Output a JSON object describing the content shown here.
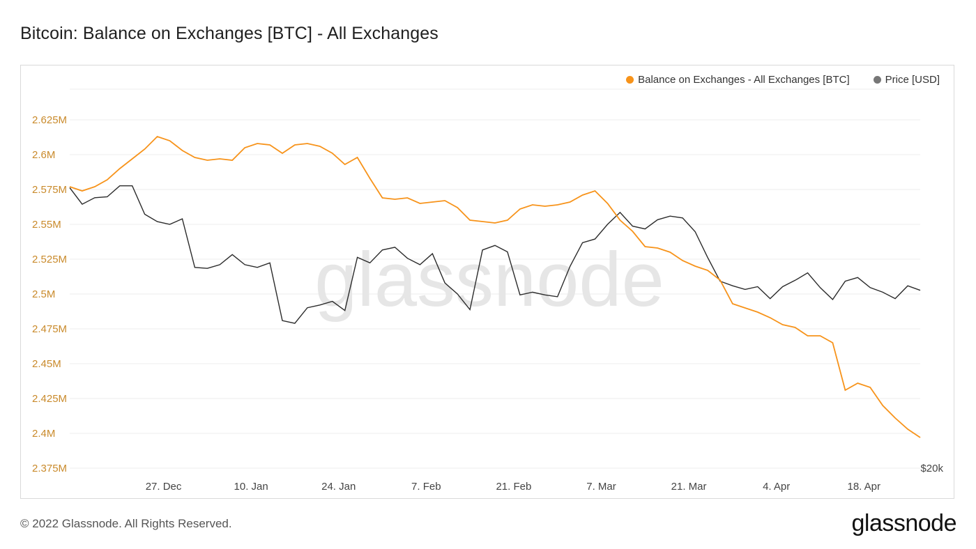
{
  "title": "Bitcoin: Balance on Exchanges [BTC] - All Exchanges",
  "legend": {
    "balance": "Balance on Exchanges - All Exchanges [BTC]",
    "price": "Price [USD]"
  },
  "watermark": "glassnode",
  "footer": "© 2022 Glassnode. All Rights Reserved.",
  "brand": "glassnode",
  "colors": {
    "balance": "#f7931a",
    "price": "#2b2b2b",
    "axis_text_left": "#c98a2b",
    "grid": "#ececec"
  },
  "chart_data": {
    "type": "line",
    "title": "Bitcoin: Balance on Exchanges [BTC] - All Exchanges",
    "x_ticks": [
      "27. Dec",
      "10. Jan",
      "24. Jan",
      "7. Feb",
      "21. Feb",
      "7. Mar",
      "21. Mar",
      "4. Apr",
      "18. Apr"
    ],
    "y_left_ticks": [
      "2.625M",
      "2.6M",
      "2.575M",
      "2.55M",
      "2.525M",
      "2.5M",
      "2.475M",
      "2.45M",
      "2.425M",
      "2.4M",
      "2.375M"
    ],
    "y_left_range": [
      2375000,
      2625000
    ],
    "y_right_tick": "$20k",
    "grid": true,
    "legend_position": "top-right",
    "series": [
      {
        "name": "Balance on Exchanges - All Exchanges [BTC]",
        "axis": "left",
        "x_days": [
          0,
          2,
          4,
          6,
          8,
          10,
          12,
          14,
          16,
          18,
          20,
          22,
          24,
          26,
          28,
          30,
          32,
          34,
          36,
          38,
          40,
          42,
          44,
          46,
          48,
          50,
          52,
          54,
          56,
          58,
          60,
          62,
          64,
          66,
          68,
          70,
          72,
          74,
          76,
          78,
          80,
          82,
          84,
          86,
          88,
          90,
          92,
          94,
          96,
          98,
          100,
          102,
          104,
          106,
          108,
          110,
          112,
          114,
          116,
          118,
          120,
          122,
          124,
          126,
          128,
          130,
          132,
          134,
          136
        ],
        "values": [
          2577000,
          2574000,
          2577000,
          2582000,
          2590000,
          2597000,
          2604000,
          2613000,
          2610000,
          2603000,
          2598000,
          2596000,
          2597000,
          2596000,
          2605000,
          2608000,
          2607000,
          2601000,
          2607000,
          2608000,
          2606000,
          2601000,
          2593000,
          2598000,
          2583000,
          2569000,
          2568000,
          2569000,
          2565000,
          2566000,
          2567000,
          2562000,
          2553000,
          2552000,
          2551000,
          2553000,
          2561000,
          2564000,
          2563000,
          2564000,
          2566000,
          2571000,
          2574000,
          2565000,
          2553000,
          2545000,
          2534000,
          2533000,
          2530000,
          2524000,
          2520000,
          2517000,
          2510000,
          2493000,
          2490000,
          2487000,
          2483000,
          2478000,
          2476000,
          2470000,
          2470000,
          2465000,
          2431000,
          2436000,
          2433000,
          2420000,
          2411000,
          2403000,
          2397000
        ]
      },
      {
        "name": "Price [USD]",
        "axis": "right",
        "x_days": [
          0,
          2,
          4,
          6,
          8,
          10,
          12,
          14,
          16,
          18,
          20,
          22,
          24,
          26,
          28,
          30,
          32,
          34,
          36,
          38,
          40,
          42,
          44,
          46,
          48,
          50,
          52,
          54,
          56,
          58,
          60,
          62,
          64,
          66,
          68,
          70,
          72,
          74,
          76,
          78,
          80,
          82,
          84,
          86,
          88,
          90,
          92,
          94,
          96,
          98,
          100,
          102,
          104,
          106,
          108,
          110,
          112,
          114,
          116,
          118,
          120,
          122,
          124,
          126,
          128,
          130,
          132,
          134,
          136
        ],
        "values": [
          50600,
          48800,
          49500,
          49600,
          50800,
          50800,
          47700,
          46900,
          46600,
          47200,
          41900,
          41800,
          42200,
          43300,
          42200,
          41900,
          42400,
          36100,
          35800,
          37500,
          37800,
          38200,
          37200,
          43000,
          42400,
          43800,
          44100,
          42900,
          42200,
          43400,
          40200,
          39000,
          37300,
          43800,
          44300,
          43600,
          38900,
          39200,
          38900,
          38700,
          42000,
          44600,
          45000,
          46600,
          47900,
          46400,
          46100,
          47100,
          47500,
          47300,
          45800,
          43000,
          40400,
          39900,
          39500,
          39800,
          38500,
          39800,
          40500,
          41300,
          39700,
          38400,
          40400,
          40800,
          39700,
          39200,
          38500,
          39900,
          39400
        ]
      }
    ]
  }
}
